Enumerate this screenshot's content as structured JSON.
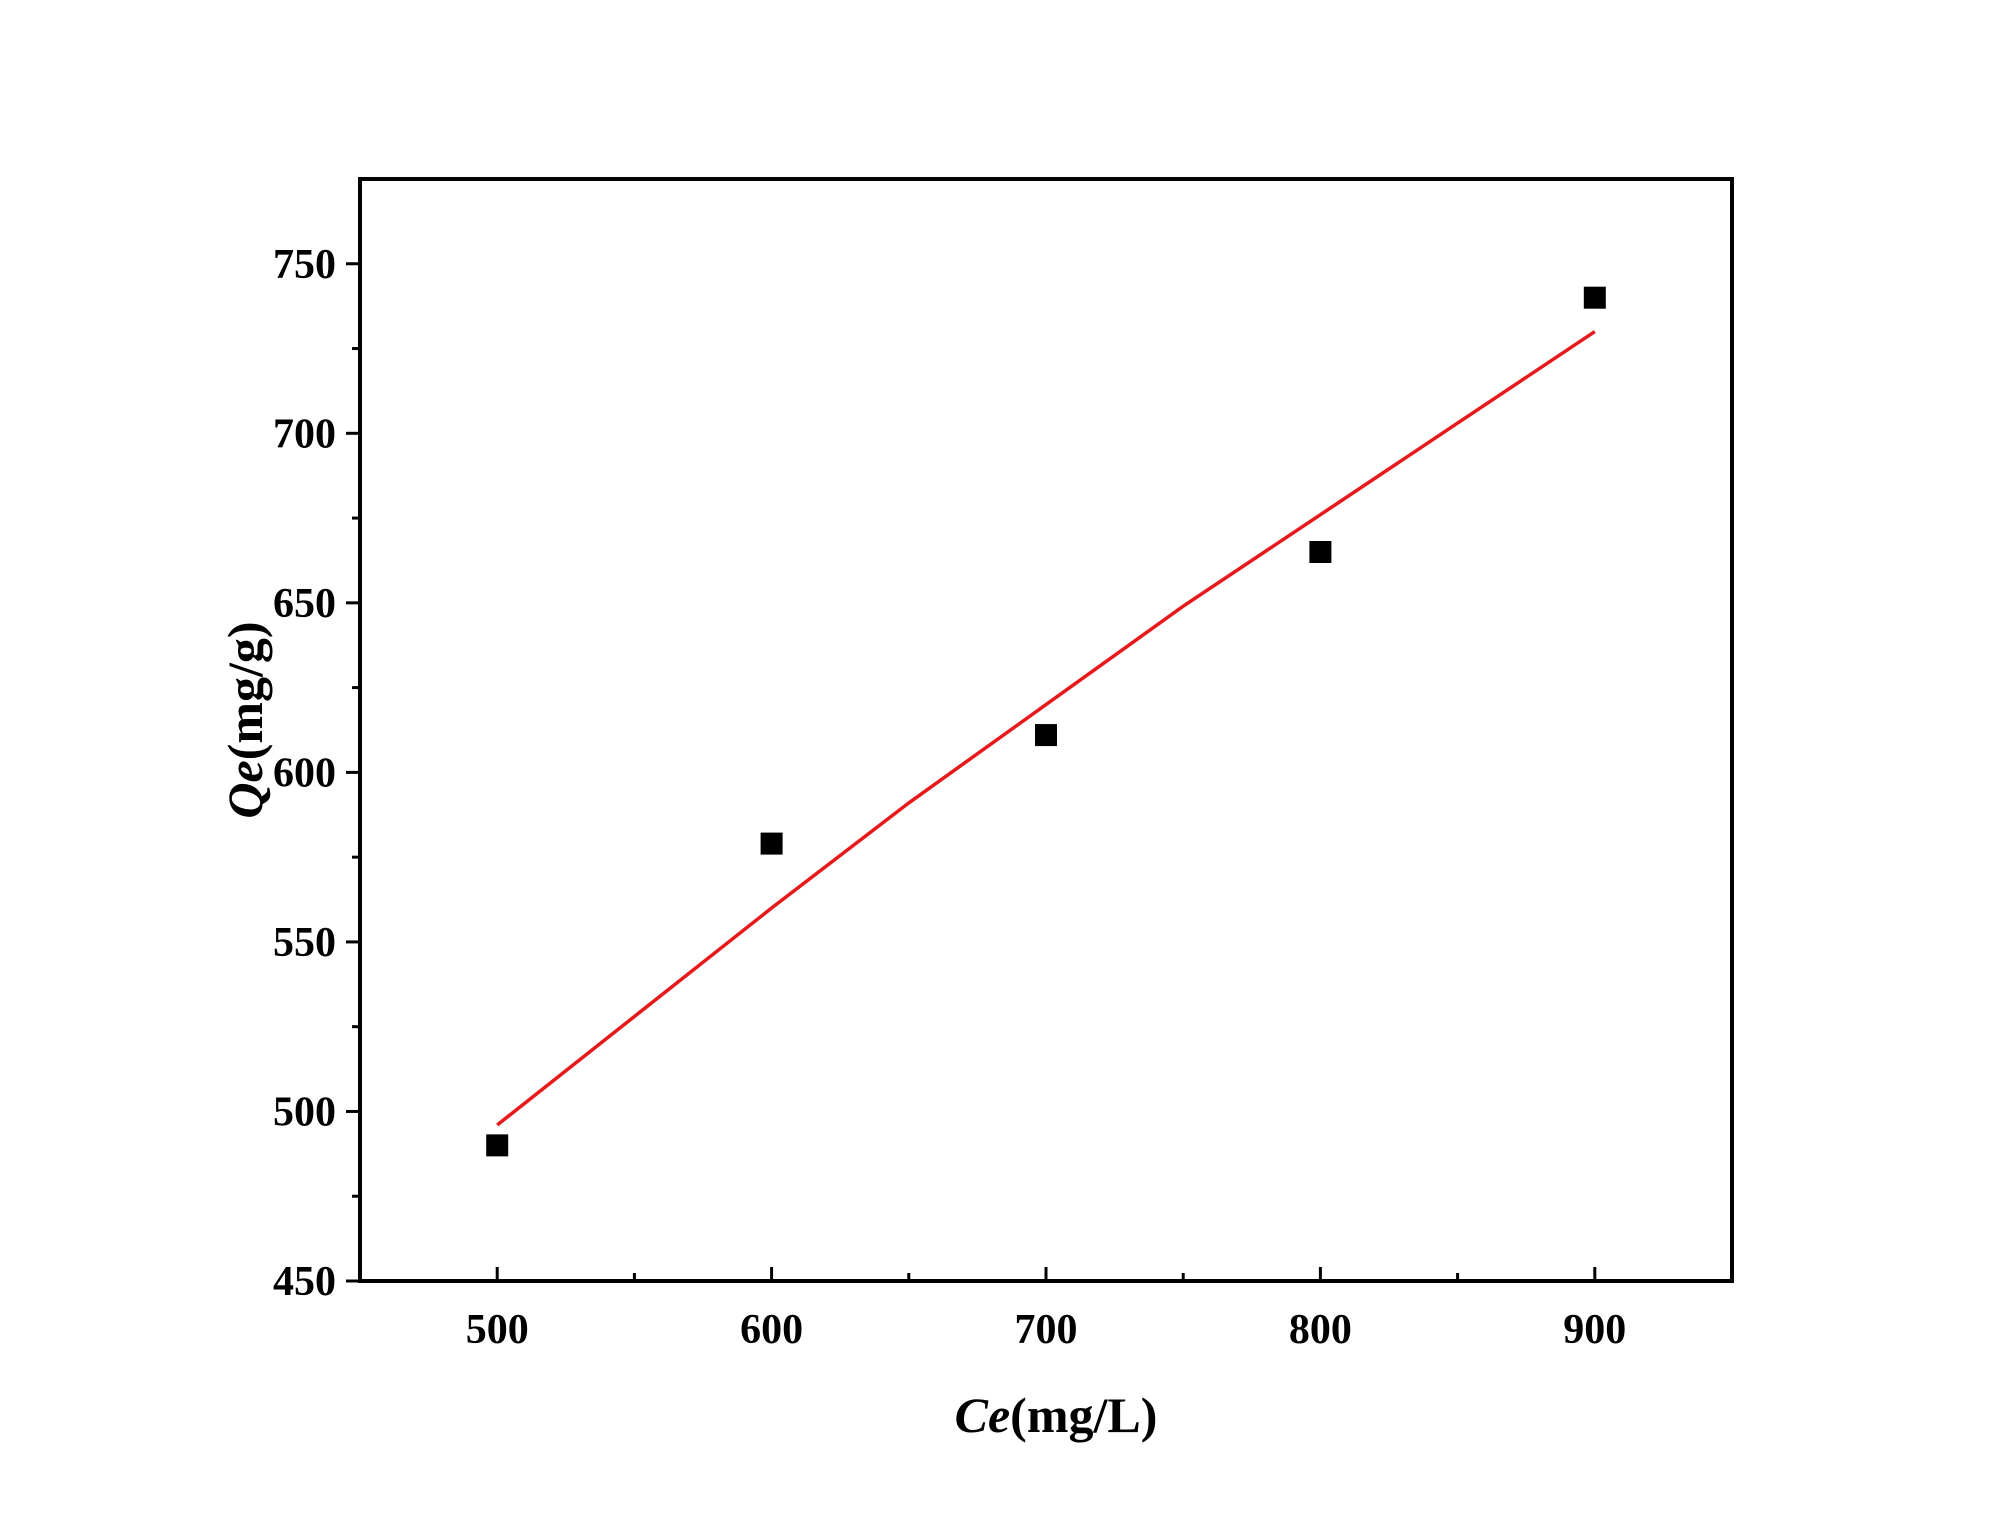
{
  "chart_data": {
    "type": "scatter",
    "xlabel": {
      "italic": "Ce",
      "unit": "(mg/L)"
    },
    "ylabel": {
      "italic": "Qe",
      "unit": "(mg/g)"
    },
    "xlim": [
      450,
      950
    ],
    "ylim": [
      450,
      775
    ],
    "x_ticks": [
      500,
      600,
      700,
      800,
      900
    ],
    "x_minor_ticks": [
      550,
      650,
      750,
      850
    ],
    "y_ticks": [
      450,
      500,
      550,
      600,
      650,
      700,
      750
    ],
    "y_minor_ticks": [
      475,
      525,
      575,
      625,
      675,
      725
    ],
    "grid": false,
    "series": [
      {
        "type": "scatter",
        "marker": "square",
        "color": "#000000",
        "x": [
          500,
          600,
          700,
          800,
          900
        ],
        "y": [
          490,
          579,
          611,
          665,
          740
        ]
      },
      {
        "type": "line",
        "color": "#e8191b",
        "x": [
          500,
          550,
          600,
          650,
          700,
          750,
          800,
          850,
          900
        ],
        "y": [
          496,
          528,
          560,
          591,
          620,
          649,
          676,
          703,
          730
        ]
      }
    ]
  }
}
